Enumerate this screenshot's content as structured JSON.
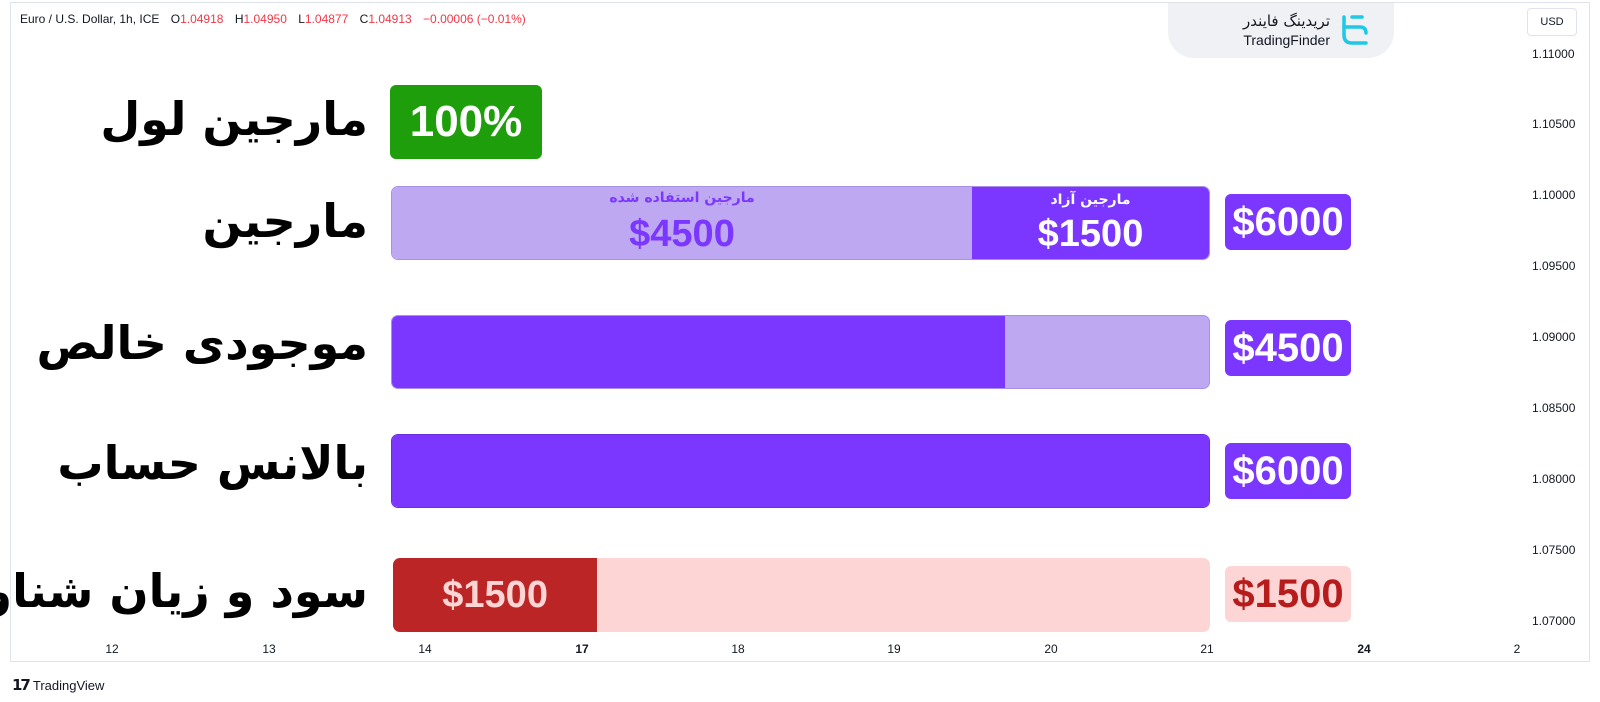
{
  "legend": {
    "symbol": "Euro / U.S. Dollar, 1h, ICE",
    "o_label": "O",
    "o_value": "1.04918",
    "h_label": "H",
    "h_value": "1.04950",
    "l_label": "L",
    "l_value": "1.04877",
    "c_label": "C",
    "c_value": "1.04913",
    "change": "−0.00006 (−0.01%)"
  },
  "logo": {
    "fa": "تریدینگ فایندر",
    "en": "TradingFinder"
  },
  "currency_button": "USD",
  "price_axis": [
    "1.11000",
    "1.10500",
    "1.10000",
    "1.09500",
    "1.09000",
    "1.08500",
    "1.08000",
    "1.07500",
    "1.07000"
  ],
  "time_axis": [
    {
      "label": "12",
      "bold": false
    },
    {
      "label": "13",
      "bold": false
    },
    {
      "label": "14",
      "bold": false
    },
    {
      "label": "17",
      "bold": true
    },
    {
      "label": "18",
      "bold": false
    },
    {
      "label": "19",
      "bold": false
    },
    {
      "label": "20",
      "bold": false
    },
    {
      "label": "21",
      "bold": false
    },
    {
      "label": "24",
      "bold": true
    },
    {
      "label": "2",
      "bold": false
    }
  ],
  "rows": {
    "margin_level": {
      "label": "مارجین لول",
      "value": "100%"
    },
    "margin": {
      "label": "مارجین",
      "used_title": "مارجین استفاده شده",
      "used_value": "$4500",
      "free_title": "مارجین آزاد",
      "free_value": "$1500",
      "total": "$6000"
    },
    "equity": {
      "label": "موجودی خالص",
      "total": "$4500",
      "filled_fraction": 0.75
    },
    "balance": {
      "label": "بالانس حساب",
      "total": "$6000",
      "filled_fraction": 1.0
    },
    "floating_pl": {
      "label": "سود و زیان شناور",
      "bar_value": "$1500",
      "total": "$1500",
      "filled_fraction": 0.25
    }
  },
  "colors": {
    "purple": "#7b37ff",
    "light_purple": "#bea8f1",
    "green": "#1f9e0b",
    "dark_red": "#bb2525",
    "light_red": "#fdd5d5",
    "red_text": "#b71c1c",
    "price_down": "#f23645"
  },
  "footer": {
    "brand": "TradingView"
  }
}
